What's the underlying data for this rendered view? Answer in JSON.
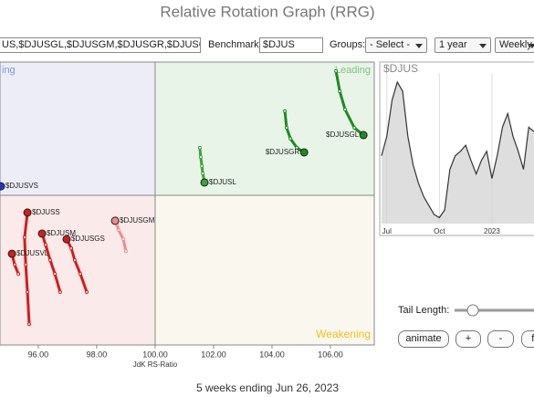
{
  "header": {
    "title": "Relative Rotation Graph (RRG)"
  },
  "controls": {
    "symbols": "US,$DJUSGL,$DJUSGM,$DJUSGR,$DJUSGS",
    "benchmark_label": "Benchmark:",
    "benchmark": "$DJUS",
    "groups_label": "Groups:",
    "groups": "- Select -",
    "period": "1 year",
    "frequency": "Weekly",
    "tail_length_label": "Tail Length:",
    "buttons": [
      "animate",
      "+",
      "-",
      "fi"
    ]
  },
  "chart_data": [
    {
      "type": "rrg",
      "x_label": "JdK RS-Ratio",
      "xlim": [
        94.69,
        107.5
      ],
      "ylim": [
        94.88,
        104.56
      ],
      "xticks": [
        {
          "value": 96,
          "label": "96.00"
        },
        {
          "value": 98,
          "label": "98.00"
        },
        {
          "value": 100,
          "label": "100.00"
        },
        {
          "value": 102,
          "label": "102.00"
        },
        {
          "value": 104,
          "label": "104.00"
        },
        {
          "value": 106,
          "label": "106.00"
        }
      ],
      "quadrant_center": [
        100,
        100
      ],
      "quadrant_labels": {
        "improving": "ing",
        "leading": "Leading",
        "weakening": "Weakening"
      },
      "series": [
        {
          "name": "$DJUSGL",
          "color": "#1e8c1e",
          "x": [
            106.19,
            106.32,
            106.5,
            106.82,
            107.13
          ],
          "y": [
            104.25,
            103.56,
            102.94,
            102.31,
            102.06
          ]
        },
        {
          "name": "$DJUSGR",
          "color": "#1e8c1e",
          "x": [
            104.44,
            104.5,
            104.63,
            104.85,
            105.1
          ],
          "y": [
            102.88,
            102.31,
            101.94,
            101.63,
            101.47
          ]
        },
        {
          "name": "$DJUSL",
          "color": "#3aa33a",
          "x": [
            101.53,
            101.56,
            101.6,
            101.63,
            101.69
          ],
          "y": [
            101.63,
            101.31,
            101.0,
            100.75,
            100.44
          ]
        },
        {
          "name": "$DJUSVS",
          "color": "#2233cc",
          "x": [
            94.72
          ],
          "y": [
            100.31
          ]
        },
        {
          "name": "$DJUSS",
          "color": "#d41c1c",
          "x": [
            95.69,
            95.63,
            95.57,
            95.53,
            95.63
          ],
          "y": [
            95.59,
            96.69,
            97.63,
            98.56,
            99.41
          ]
        },
        {
          "name": "$DJUSGM",
          "color": "#f08a8a",
          "x": [
            99.0,
            98.91,
            98.75,
            98.69,
            98.63
          ],
          "y": [
            98.09,
            98.5,
            98.81,
            99.0,
            99.13
          ]
        },
        {
          "name": "$DJUSM",
          "color": "#d41c1c",
          "x": [
            96.75,
            96.57,
            96.41,
            96.25,
            96.13
          ],
          "y": [
            96.69,
            97.31,
            97.78,
            98.31,
            98.69
          ]
        },
        {
          "name": "$DJUSGS",
          "color": "#d41c1c",
          "x": [
            97.66,
            97.44,
            97.25,
            97.13,
            96.97
          ],
          "y": [
            96.69,
            97.31,
            97.78,
            98.19,
            98.5
          ]
        },
        {
          "name": "$DJUSVL",
          "color": "#d41c1c",
          "x": [
            95.32,
            95.19,
            95.1
          ],
          "y": [
            97.31,
            97.63,
            98.0
          ]
        }
      ]
    },
    {
      "type": "line",
      "ylim": [
        0,
        100
      ],
      "categories": [
        null,
        "Jul",
        null,
        null,
        null,
        null,
        null,
        null,
        null,
        null,
        null,
        "Oct",
        null,
        null,
        null,
        null,
        null,
        null,
        null,
        null,
        null,
        "2023",
        null,
        null,
        null,
        null,
        null,
        null,
        null,
        null
      ],
      "series": [
        {
          "name": "$DJUS",
          "color": "#333333",
          "values": [
            45,
            58,
            82,
            94,
            88,
            58,
            39,
            27,
            18,
            12,
            6,
            4,
            9,
            36,
            45,
            48,
            52,
            42,
            33,
            42,
            48,
            30,
            45,
            64,
            73,
            58,
            48,
            36,
            64,
            61
          ]
        }
      ]
    }
  ],
  "footer": "5 weeks ending Jun 26, 2023"
}
